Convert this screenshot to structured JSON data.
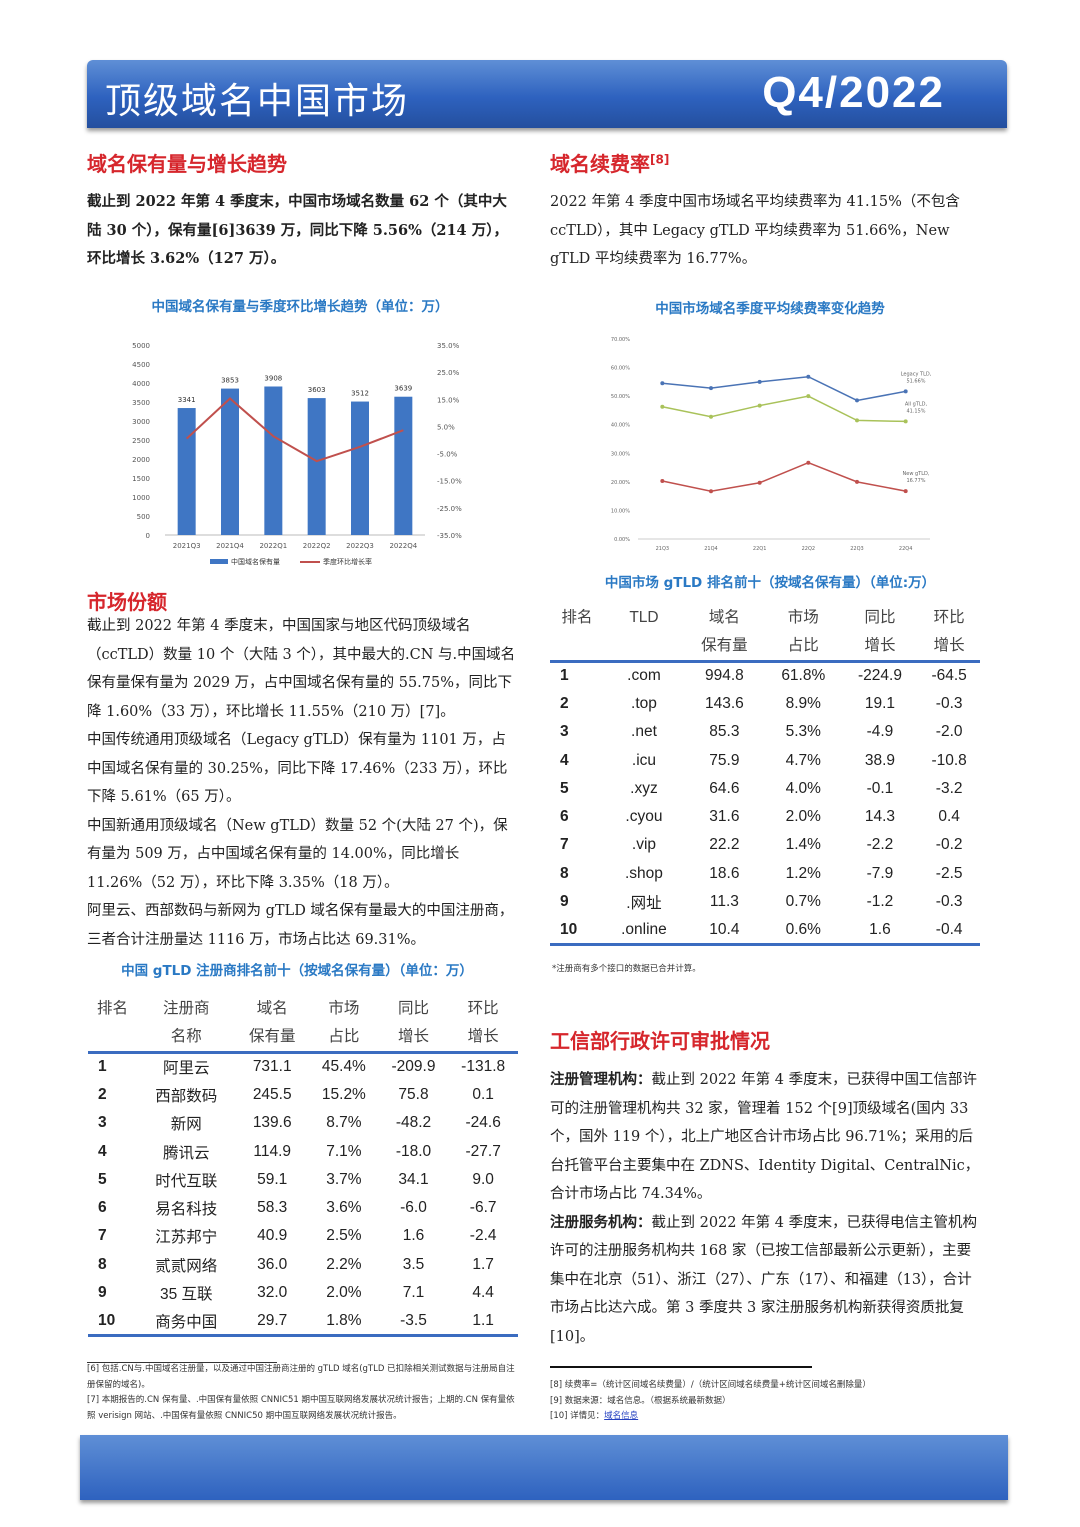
{
  "header": {
    "title": "顶级域名中国市场",
    "period": "Q4/2022"
  },
  "s1": {
    "title": "域名保有量与增长趋势",
    "body": "截止到 2022 年第 4 季度末，中国市场域名数量 62 个（其中大陆 30 个），保有量[6]3639 万，同比下降 5.56%（214 万），环比增长 3.62%（127 万）。"
  },
  "s2": {
    "title": "域名续费率",
    "sup": "[8]",
    "body": "2022 年第 4 季度中国市场域名平均续费率为 41.15%（不包含 ccTLD），其中 Legacy gTLD 平均续费率为 51.66%，New gTLD 平均续费率为 16.77%。"
  },
  "s3": {
    "title": "市场份额",
    "paragraphs": [
      "截止到 2022 年第 4 季度末，中国国家与地区代码顶级域名（ccTLD）数量 10 个（大陆 3 个），其中最大的.CN 与.中国域名保有量保有量为 2029 万，占中国域名保有量的 55.75%，同比下降 1.60%（33 万），环比增长 11.55%（210 万）[7]。",
      "中国传统通用顶级域名（Legacy gTLD）保有量为 1101 万，占中国域名保有量的 30.25%，同比下降 17.46%（233 万），环比下降 5.61%（65 万）。",
      "中国新通用顶级域名（New gTLD）数量 52 个(大陆 27 个)，保有量为 509 万，占中国域名保有量的 14.00%，同比增长 11.26%（52 万），环比下降 3.35%（18 万）。",
      "阿里云、西部数码与新网为 gTLD 域名保有量最大的中国注册商，三者合计注册量达 1116 万，市场占比达 69.31%。"
    ]
  },
  "s4": {
    "title": "工信部行政许可审批情况",
    "p1_label": "注册管理机构：",
    "p1": "截止到 2022 年第 4 季度末，已获得中国工信部许可的注册管理机构共 32 家，管理着 152 个[9]顶级域名(国内 33 个，国外 119 个），北上广地区合计市场占比 96.71%；采用的后台托管平台主要集中在 ZDNS、Identity Digital、CentralNic，合计市场占比 74.34%。",
    "p2_label": "注册服务机构：",
    "p2": "截止到 2022 年第 4 季度末，已获得电信主管机构许可的注册服务机构共 168 家（已按工信部最新公示更新），主要集中在北京（51）、浙江（27）、广东（17）、和福建（13），合计市场占比达六成。第 3 季度共 3 家注册服务机构新获得资质批复[10]。"
  },
  "chart_data": [
    {
      "type": "bar",
      "title": "中国域名保有量与季度环比增长趋势（单位：万）",
      "categories": [
        "2021Q3",
        "2021Q4",
        "2022Q1",
        "2022Q2",
        "2022Q3",
        "2022Q4"
      ],
      "series": [
        {
          "name": "中国域名保有量",
          "type": "bar",
          "values": [
            3341,
            3853,
            3908,
            3603,
            3512,
            3639
          ],
          "color": "#3f76c4"
        },
        {
          "name": "季度环比增长率",
          "type": "line",
          "axis": "right",
          "values": [
            0.5,
            15.3,
            1.4,
            -7.8,
            -2.5,
            3.6
          ],
          "color": "#c0504d"
        }
      ],
      "yticks": [
        "0",
        "500",
        "1000",
        "1500",
        "2000",
        "2500",
        "3000",
        "3500",
        "4000",
        "4500",
        "5000"
      ],
      "ylim": [
        0,
        5000
      ],
      "y2ticks": [
        "-35.0%",
        "-25.0%",
        "-15.0%",
        "-5.0%",
        "5.0%",
        "15.0%",
        "25.0%",
        "35.0%"
      ],
      "y2lim": [
        -35,
        35
      ],
      "legend": "bottom"
    },
    {
      "type": "line",
      "title": "中国市场域名季度平均续费率变化趋势",
      "categories": [
        "21Q3",
        "21Q4",
        "22Q1",
        "22Q2",
        "22Q3",
        "22Q4"
      ],
      "series": [
        {
          "name": "Legacy TLD,",
          "end_label": "51.66%",
          "values": [
            54.5,
            52.8,
            55.0,
            56.8,
            48.5,
            51.66
          ],
          "color": "#4a73b5"
        },
        {
          "name": "All gTLD,",
          "end_label": "41.15%",
          "values": [
            46.3,
            42.8,
            46.7,
            50.0,
            41.5,
            41.15
          ],
          "color": "#a9c25a"
        },
        {
          "name": "New gTLD,",
          "end_label": "16.77%",
          "values": [
            20.3,
            16.7,
            19.7,
            26.7,
            20.0,
            16.77
          ],
          "color": "#c0504d"
        }
      ],
      "yticks": [
        "0.00%",
        "10.00%",
        "20.00%",
        "30.00%",
        "40.00%",
        "50.00%",
        "60.00%",
        "70.00%"
      ],
      "ylim": [
        0,
        70
      ],
      "legend": "end-labels"
    }
  ],
  "tld_table": {
    "title": "中国市场 gTLD 排名前十（按域名保有量）（单位:万）",
    "headers": [
      [
        "排名",
        ""
      ],
      [
        "TLD",
        ""
      ],
      [
        "域名",
        "保有量"
      ],
      [
        "市场",
        "占比"
      ],
      [
        "同比",
        "增长"
      ],
      [
        "环比",
        "增长"
      ]
    ],
    "rows": [
      [
        "1",
        ".com",
        "994.8",
        "61.8%",
        "-224.9",
        "-64.5"
      ],
      [
        "2",
        ".top",
        "143.6",
        "8.9%",
        "19.1",
        "-0.3"
      ],
      [
        "3",
        ".net",
        "85.3",
        "5.3%",
        "-4.9",
        "-2.0"
      ],
      [
        "4",
        ".icu",
        "75.9",
        "4.7%",
        "38.9",
        "-10.8"
      ],
      [
        "5",
        ".xyz",
        "64.6",
        "4.0%",
        "-0.1",
        "-3.2"
      ],
      [
        "6",
        ".cyou",
        "31.6",
        "2.0%",
        "14.3",
        "0.4"
      ],
      [
        "7",
        ".vip",
        "22.2",
        "1.4%",
        "-2.2",
        "-0.2"
      ],
      [
        "8",
        ".shop",
        "18.6",
        "1.2%",
        "-7.9",
        "-2.5"
      ],
      [
        "9",
        ".网址",
        "11.3",
        "0.7%",
        "-1.2",
        "-0.3"
      ],
      [
        "10",
        ".online",
        "10.4",
        "0.6%",
        "1.6",
        "-0.4"
      ]
    ],
    "note": "*注册商有多个接口的数据已合并计算。"
  },
  "reg_table": {
    "title": "中国 gTLD 注册商排名前十（按域名保有量）（单位：万）",
    "headers": [
      [
        "排名",
        ""
      ],
      [
        "注册商",
        "名称"
      ],
      [
        "域名",
        "保有量"
      ],
      [
        "市场",
        "占比"
      ],
      [
        "同比",
        "增长"
      ],
      [
        "环比",
        "增长"
      ]
    ],
    "rows": [
      [
        "1",
        "阿里云",
        "731.1",
        "45.4%",
        "-209.9",
        "-131.8"
      ],
      [
        "2",
        "西部数码",
        "245.5",
        "15.2%",
        "75.8",
        "0.1"
      ],
      [
        "3",
        "新网",
        "139.6",
        "8.7%",
        "-48.2",
        "-24.6"
      ],
      [
        "4",
        "腾讯云",
        "114.9",
        "7.1%",
        "-18.0",
        "-27.7"
      ],
      [
        "5",
        "时代互联",
        "59.1",
        "3.7%",
        "34.1",
        "9.0"
      ],
      [
        "6",
        "易名科技",
        "58.3",
        "3.6%",
        "-6.0",
        "-6.7"
      ],
      [
        "7",
        "江苏邦宁",
        "40.9",
        "2.5%",
        "1.6",
        "-2.4"
      ],
      [
        "8",
        "贰贰网络",
        "36.0",
        "2.2%",
        "3.5",
        "1.7"
      ],
      [
        "9",
        "35 互联",
        "32.0",
        "2.0%",
        "7.1",
        "4.4"
      ],
      [
        "10",
        "商务中国",
        "29.7",
        "1.8%",
        "-3.5",
        "1.1"
      ]
    ]
  },
  "footnotes_left": [
    "[6] 包括.CN与.中国域名注册量，以及通过中国注册商注册的 gTLD 域名(gTLD 已扣除相关测试数据与注册局自注册保留的域名)。",
    "[7] 本期报告的.CN 保有量、.中国保有量依照 CNNIC51 期中国互联网络发展状况统计报告；上期的.CN 保有量依照 verisign 网站、.中国保有量依照 CNNIC50 期中国互联网络发展状况统计报告。"
  ],
  "footnotes_right": {
    "f8": "[8] 续费率=（统计区间域名续费量）/（统计区间域名续费量+统计区间域名删除量）",
    "f9": "[9] 数据来源：域名信息。（根据系统最新数据）",
    "f10_prefix": "[10] 详情见：",
    "f10_link": "域名信息"
  }
}
